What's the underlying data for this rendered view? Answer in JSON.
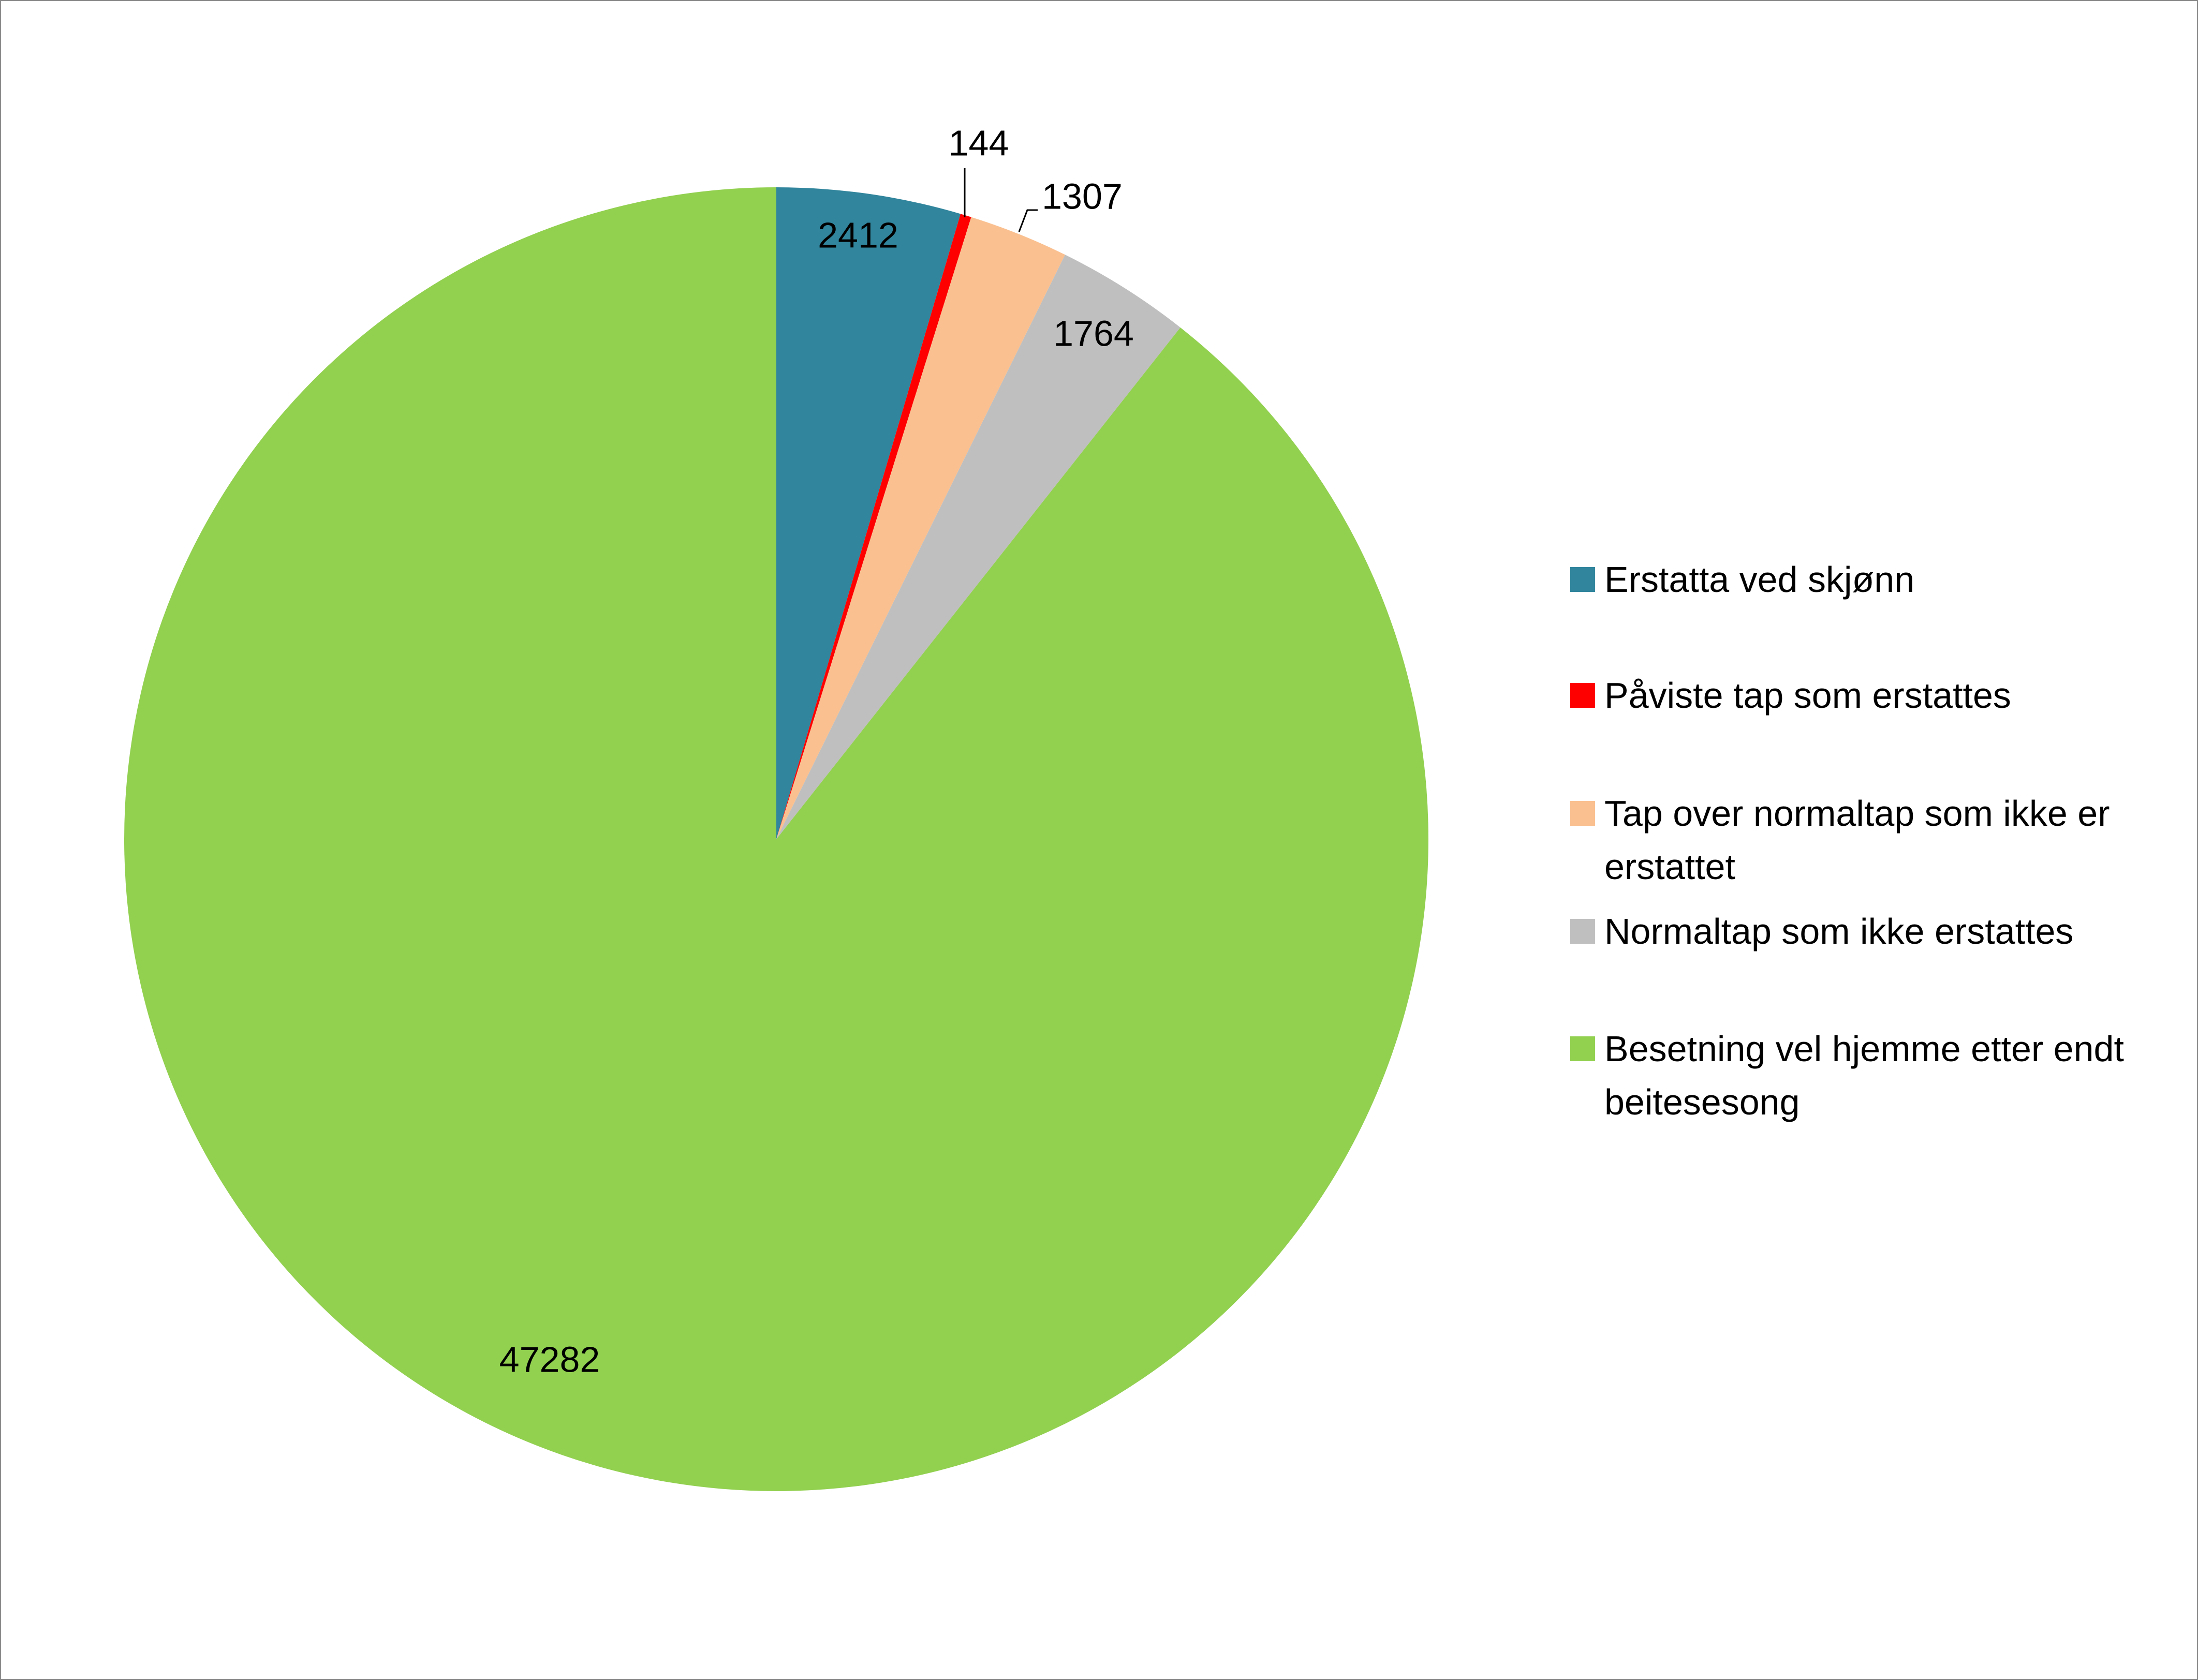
{
  "chart_data": {
    "type": "pie",
    "categories": [
      "Erstatta ved skjønn",
      "Påviste tap som erstattes",
      "Tap over normaltap som ikke er erstattet",
      "Normaltap som ikke erstattes",
      "Besetning vel hjemme etter endt beitesesong"
    ],
    "values": [
      2412,
      144,
      1307,
      1764,
      47282
    ],
    "colors": [
      "#31859c",
      "#ff0000",
      "#fac090",
      "#bfbfbf",
      "#92d050"
    ],
    "legend": "right"
  }
}
